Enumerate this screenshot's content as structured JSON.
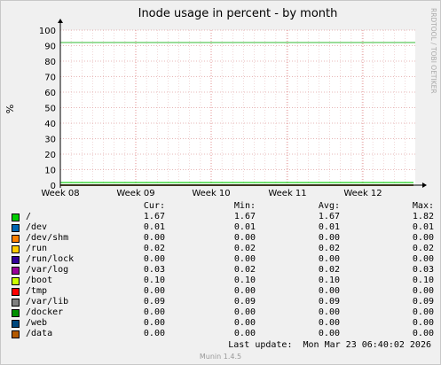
{
  "chart_data": {
    "type": "line",
    "title": "Inode usage in percent - by month",
    "ylabel": "%",
    "xlabel": "",
    "ylim": [
      0,
      100
    ],
    "y_ticks": [
      0,
      10,
      20,
      30,
      40,
      50,
      60,
      70,
      80,
      90,
      100
    ],
    "x_ticks": [
      "Week 08",
      "Week 09",
      "Week 10",
      "Week 11",
      "Week 12"
    ],
    "grid": true,
    "watermark": "RRDTOOL / TOBI OETIKER",
    "threshold_line": 92,
    "legend_headers": {
      "cur": "Cur:",
      "min": "Min:",
      "avg": "Avg:",
      "max": "Max:"
    },
    "series": [
      {
        "name": "/",
        "color": "#00cc00",
        "cur": "1.67",
        "min": "1.67",
        "avg": "1.67",
        "max": "1.82"
      },
      {
        "name": "/dev",
        "color": "#0066b3",
        "cur": "0.01",
        "min": "0.01",
        "avg": "0.01",
        "max": "0.01"
      },
      {
        "name": "/dev/shm",
        "color": "#ff8000",
        "cur": "0.00",
        "min": "0.00",
        "avg": "0.00",
        "max": "0.00"
      },
      {
        "name": "/run",
        "color": "#ffcc00",
        "cur": "0.02",
        "min": "0.02",
        "avg": "0.02",
        "max": "0.02"
      },
      {
        "name": "/run/lock",
        "color": "#330099",
        "cur": "0.00",
        "min": "0.00",
        "avg": "0.00",
        "max": "0.00"
      },
      {
        "name": "/var/log",
        "color": "#990099",
        "cur": "0.03",
        "min": "0.02",
        "avg": "0.02",
        "max": "0.03"
      },
      {
        "name": "/boot",
        "color": "#ccff00",
        "cur": "0.10",
        "min": "0.10",
        "avg": "0.10",
        "max": "0.10"
      },
      {
        "name": "/tmp",
        "color": "#ff0000",
        "cur": "0.00",
        "min": "0.00",
        "avg": "0.00",
        "max": "0.00"
      },
      {
        "name": "/var/lib",
        "color": "#808080",
        "cur": "0.09",
        "min": "0.09",
        "avg": "0.09",
        "max": "0.09"
      },
      {
        "name": "/docker",
        "color": "#008f00",
        "cur": "0.00",
        "min": "0.00",
        "avg": "0.00",
        "max": "0.00"
      },
      {
        "name": "/web",
        "color": "#00487d",
        "cur": "0.00",
        "min": "0.00",
        "avg": "0.00",
        "max": "0.00"
      },
      {
        "name": "/data",
        "color": "#b35a00",
        "cur": "0.00",
        "min": "0.00",
        "avg": "0.00",
        "max": "0.00"
      }
    ],
    "last_update": "Last update:  Mon Mar 23 06:40:02 2026",
    "footer": "Munin 1.4.5"
  }
}
